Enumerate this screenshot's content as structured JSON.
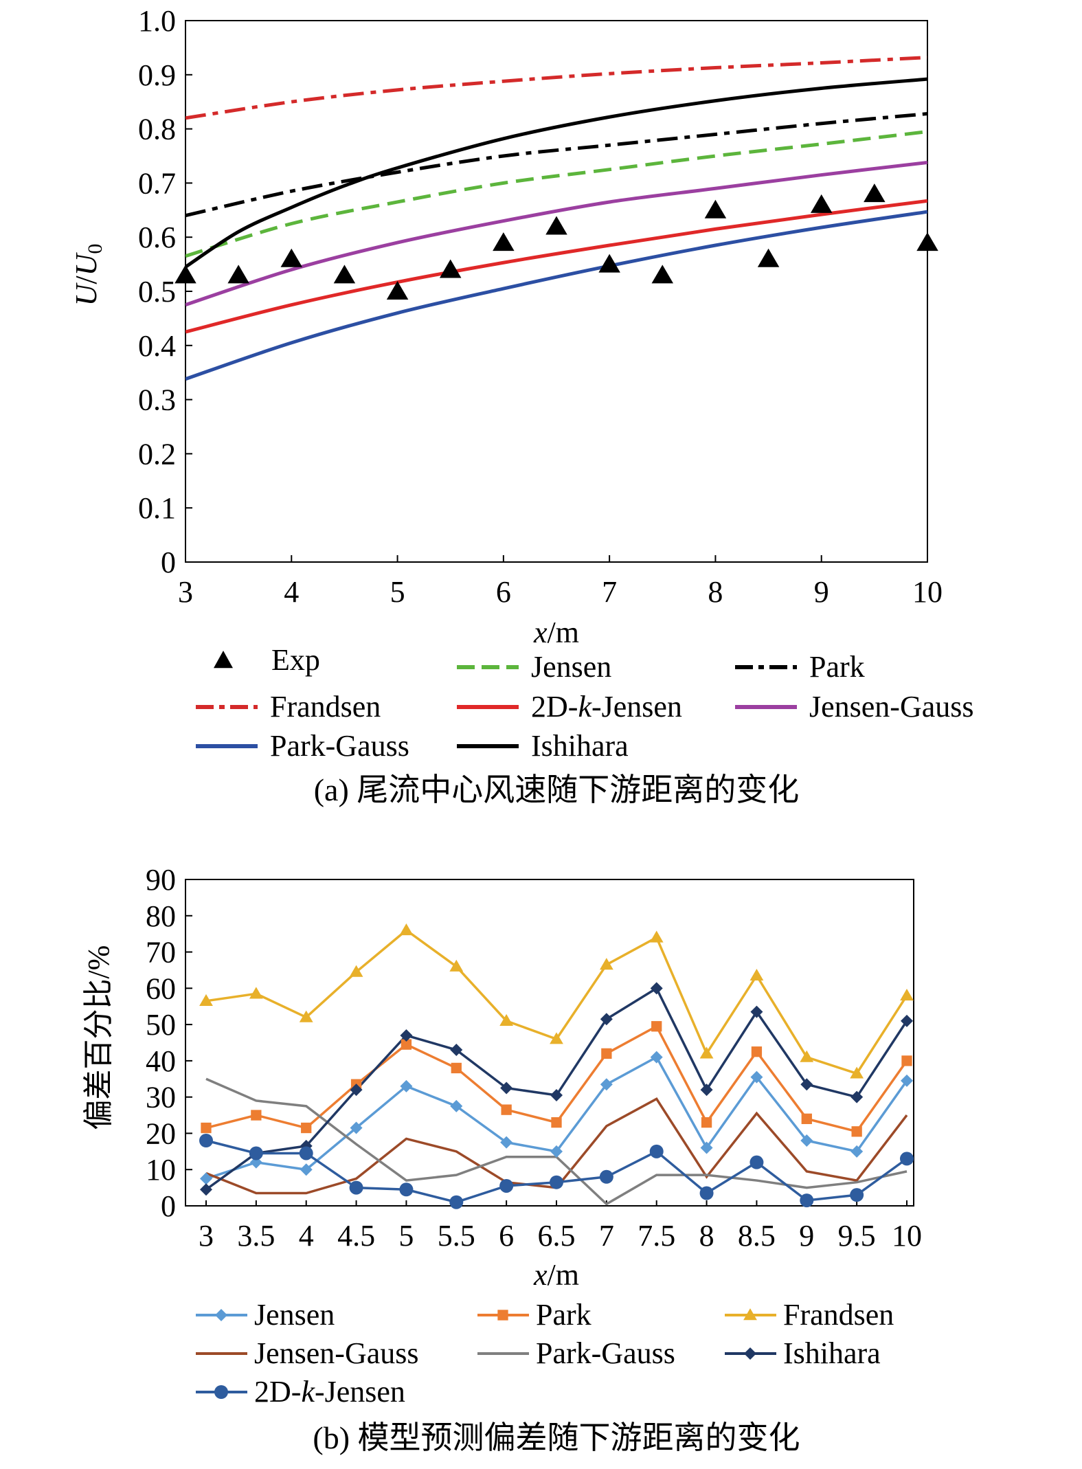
{
  "chart_data": [
    {
      "type": "line",
      "caption": "(a) 尾流中心风速随下游距离的变化",
      "xlabel": {
        "italic": "x",
        "rest": "/m"
      },
      "ylabel": {
        "u": "U",
        "sep": "/",
        "u0": "U",
        "sub": "0"
      },
      "xlim": [
        3,
        10
      ],
      "ylim": [
        0,
        1.0
      ],
      "xticks": [
        "3",
        "4",
        "5",
        "6",
        "7",
        "8",
        "9",
        "10"
      ],
      "yticks": [
        "0",
        "0.1",
        "0.2",
        "0.3",
        "0.4",
        "0.5",
        "0.6",
        "0.7",
        "0.8",
        "0.9",
        "1.0"
      ],
      "grid": false,
      "legend_position": "bottom",
      "series": [
        {
          "name": "Exp",
          "style": "marker-triangle",
          "color": "#000000",
          "x": [
            3,
            3.5,
            4,
            4.5,
            5,
            5.5,
            6,
            6.5,
            7,
            7.5,
            8,
            8.5,
            9,
            9.5,
            10
          ],
          "y": [
            0.53,
            0.53,
            0.56,
            0.53,
            0.5,
            0.54,
            0.59,
            0.62,
            0.55,
            0.53,
            0.65,
            0.56,
            0.66,
            0.68,
            0.59
          ]
        },
        {
          "name": "Jensen",
          "style": "dash",
          "color": "#5cb53c",
          "x": [
            3,
            4,
            5,
            6,
            7,
            8,
            9,
            10
          ],
          "y": [
            0.565,
            0.625,
            0.665,
            0.7,
            0.725,
            0.75,
            0.772,
            0.795
          ]
        },
        {
          "name": "Park",
          "style": "dashdot",
          "color": "#000000",
          "x": [
            3,
            4,
            5,
            6,
            7,
            8,
            9,
            10
          ],
          "y": [
            0.64,
            0.685,
            0.72,
            0.75,
            0.77,
            0.79,
            0.81,
            0.828
          ]
        },
        {
          "name": "Frandsen",
          "style": "dashdot",
          "color": "#d42a2a",
          "x": [
            3,
            4,
            5,
            6,
            7,
            8,
            9,
            10
          ],
          "y": [
            0.82,
            0.85,
            0.872,
            0.888,
            0.902,
            0.913,
            0.922,
            0.932
          ]
        },
        {
          "name": "2D-k-Jensen",
          "label_parts": [
            "2D-",
            "k",
            "-Jensen"
          ],
          "style": "solid",
          "color": "#e02828",
          "x": [
            3,
            4,
            5,
            6,
            7,
            8,
            9,
            10
          ],
          "y": [
            0.425,
            0.475,
            0.517,
            0.553,
            0.585,
            0.615,
            0.642,
            0.667
          ]
        },
        {
          "name": "Jensen-Gauss",
          "style": "solid",
          "color": "#9b3fa0",
          "x": [
            3,
            4,
            5,
            6,
            7,
            8,
            9,
            10
          ],
          "y": [
            0.475,
            0.54,
            0.59,
            0.63,
            0.665,
            0.69,
            0.715,
            0.738
          ]
        },
        {
          "name": "Park-Gauss",
          "style": "solid",
          "color": "#2c4fa3",
          "x": [
            3,
            4,
            5,
            6,
            7,
            8,
            9,
            10
          ],
          "y": [
            0.338,
            0.405,
            0.46,
            0.505,
            0.547,
            0.585,
            0.618,
            0.647
          ]
        },
        {
          "name": "Ishihara",
          "style": "solid",
          "color": "#000000",
          "x": [
            3,
            3.5,
            4,
            4.5,
            5,
            6,
            7,
            8,
            9,
            10
          ],
          "y": [
            0.545,
            0.61,
            0.655,
            0.695,
            0.728,
            0.782,
            0.822,
            0.852,
            0.875,
            0.892
          ]
        }
      ]
    },
    {
      "type": "line",
      "caption": "(b) 模型预测偏差随下游距离的变化",
      "xlabel": {
        "italic": "x",
        "rest": "/m"
      },
      "ylabel": {
        "text": "偏差百分比/%"
      },
      "categories": [
        "3",
        "3.5",
        "4",
        "4.5",
        "5",
        "5.5",
        "6",
        "6.5",
        "7",
        "7.5",
        "8",
        "8.5",
        "9",
        "9.5",
        "10"
      ],
      "ylim": [
        0,
        90
      ],
      "yticks": [
        "0",
        "10",
        "20",
        "30",
        "40",
        "50",
        "60",
        "70",
        "80",
        "90"
      ],
      "grid": false,
      "legend_position": "bottom",
      "series": [
        {
          "name": "Jensen",
          "marker": "diamond",
          "color": "#5b9bd5",
          "values": [
            7.5,
            12,
            10,
            21.5,
            33,
            27.5,
            17.5,
            15,
            33.5,
            41,
            16,
            35.5,
            18,
            15,
            34.5
          ]
        },
        {
          "name": "Park",
          "marker": "square",
          "color": "#ed7d31",
          "values": [
            21.5,
            25,
            21.5,
            33.5,
            44.5,
            38,
            26.5,
            23,
            42,
            49.5,
            23,
            42.5,
            24,
            20.5,
            40
          ]
        },
        {
          "name": "Frandsen",
          "marker": "triangle",
          "color": "#e8b02a",
          "values": [
            56.5,
            58.5,
            52,
            64.5,
            76,
            66,
            51,
            46,
            66.5,
            74,
            42,
            63.5,
            41,
            36.5,
            58
          ]
        },
        {
          "name": "Jensen-Gauss",
          "marker": "none",
          "color": "#9c4a28",
          "values": [
            9,
            3.5,
            3.5,
            7.5,
            18.5,
            15,
            6.5,
            5,
            22,
            29.5,
            8,
            25.5,
            9.5,
            7,
            25
          ]
        },
        {
          "name": "Park-Gauss",
          "marker": "none",
          "color": "#7f7f7f",
          "values": [
            35,
            29,
            27.5,
            17,
            7,
            8.5,
            13.5,
            13.5,
            0.5,
            8.5,
            8.5,
            7,
            5,
            6.5,
            9.5
          ]
        },
        {
          "name": "Ishihara",
          "marker": "diamond",
          "color": "#203864",
          "values": [
            4.5,
            14.5,
            16.5,
            32,
            47,
            43,
            32.5,
            30.5,
            51.5,
            60,
            32,
            53.5,
            33.5,
            30,
            51
          ]
        },
        {
          "name": "2D-k-Jensen",
          "label_parts": [
            "2D-",
            "k",
            "-Jensen"
          ],
          "marker": "circle",
          "color": "#2e5c9e",
          "values": [
            18,
            14.5,
            14.5,
            5,
            4.5,
            1,
            5.5,
            6.5,
            8,
            15,
            3.5,
            12,
            1.5,
            3,
            13
          ]
        }
      ]
    }
  ]
}
